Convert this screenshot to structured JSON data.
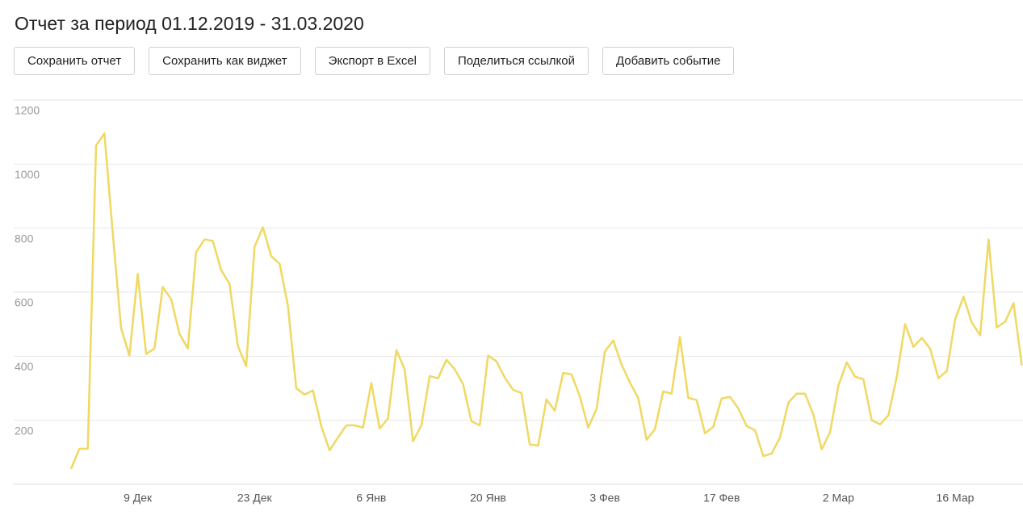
{
  "header": {
    "title": "Отчет за период 01.12.2019 - 31.03.2020"
  },
  "buttons": [
    "Сохранить отчет",
    "Сохранить как виджет",
    "Экспорт в Excel",
    "Поделиться ссылкой",
    "Добавить событие"
  ],
  "chart_data": {
    "type": "line",
    "categories": [
      null,
      null,
      null,
      null,
      null,
      null,
      null,
      null,
      "9 Дек",
      null,
      null,
      null,
      null,
      null,
      null,
      null,
      null,
      null,
      null,
      null,
      null,
      null,
      "23 Дек",
      null,
      null,
      null,
      null,
      null,
      null,
      null,
      null,
      null,
      null,
      null,
      null,
      null,
      "6 Янв",
      null,
      null,
      null,
      null,
      null,
      null,
      null,
      null,
      null,
      null,
      null,
      null,
      null,
      "20 Янв",
      null,
      null,
      null,
      null,
      null,
      null,
      null,
      null,
      null,
      null,
      null,
      null,
      null,
      "3 Фев",
      null,
      null,
      null,
      null,
      null,
      null,
      null,
      null,
      null,
      null,
      null,
      null,
      null,
      "17 Фев",
      null,
      null,
      null,
      null,
      null,
      null,
      null,
      null,
      null,
      null,
      null,
      null,
      null,
      "2 Мар",
      null,
      null,
      null,
      null,
      null,
      null,
      null,
      null,
      null,
      null,
      null,
      null,
      null,
      "16 Мар",
      null,
      null,
      null,
      null,
      null,
      null,
      null,
      null
    ],
    "series": [
      {
        "color": "#f0d862",
        "values": [
          48,
          111,
          111,
          1058,
          1096,
          783,
          487,
          402,
          657,
          407,
          424,
          616,
          578,
          470,
          424,
          725,
          765,
          760,
          669,
          626,
          432,
          369,
          742,
          803,
          712,
          689,
          558,
          300,
          280,
          293,
          182,
          106,
          146,
          184,
          184,
          177,
          316,
          174,
          205,
          419,
          359,
          134,
          184,
          338,
          331,
          389,
          359,
          313,
          197,
          184,
          402,
          384,
          333,
          295,
          285,
          124,
          121,
          265,
          230,
          348,
          343,
          275,
          177,
          235,
          414,
          449,
          374,
          318,
          270,
          139,
          172,
          290,
          283,
          460,
          270,
          263,
          159,
          179,
          268,
          273,
          237,
          182,
          169,
          88,
          96,
          146,
          255,
          283,
          283,
          217,
          109,
          162,
          308,
          381,
          336,
          328,
          200,
          187,
          215,
          336,
          500,
          429,
          457,
          424,
          331,
          354,
          515,
          586,
          505,
          465,
          765,
          490,
          508,
          566,
          371
        ]
      }
    ],
    "ylim": [
      0,
      1200
    ],
    "yticks": [
      200,
      400,
      600,
      800,
      1000,
      1200
    ],
    "grid": true
  }
}
